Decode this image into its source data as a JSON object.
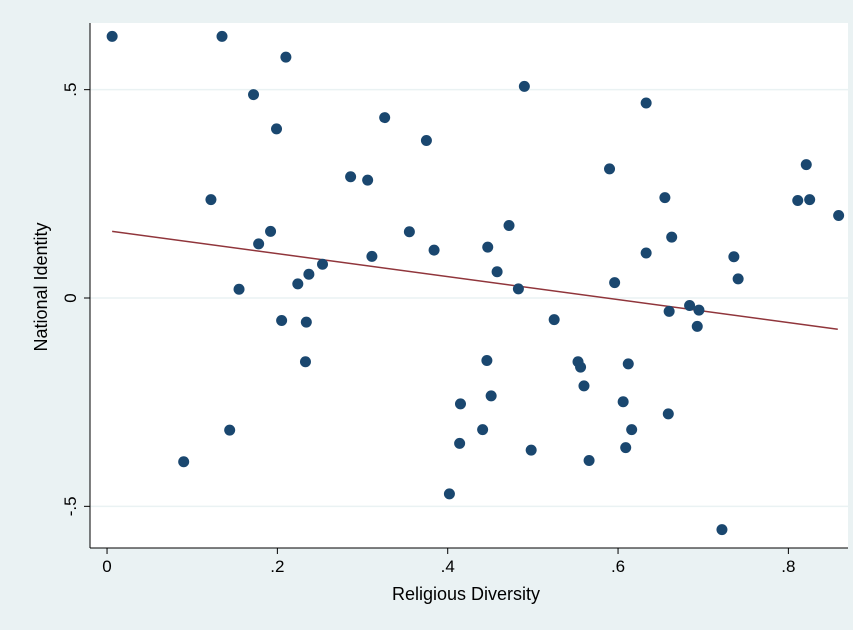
{
  "chart_data": {
    "type": "scatter",
    "xlabel": "Religious Diversity",
    "ylabel": "National Identity",
    "xlim": [
      -0.02,
      0.87
    ],
    "ylim": [
      -0.6,
      0.66
    ],
    "x_ticks": [
      {
        "value": 0,
        "label": "0"
      },
      {
        "value": 0.2,
        "label": ".2"
      },
      {
        "value": 0.4,
        "label": ".4"
      },
      {
        "value": 0.6,
        "label": ".6"
      },
      {
        "value": 0.8,
        "label": ".8"
      }
    ],
    "y_ticks": [
      {
        "value": -0.5,
        "label": "-.5"
      },
      {
        "value": 0,
        "label": "0"
      },
      {
        "value": 0.5,
        "label": ".5"
      }
    ],
    "grid": "horizontal",
    "colors": {
      "points": "#1a476f",
      "fit_line": "#90353b",
      "background": "#eaf2f3",
      "plot_background": "#ffffff",
      "grid": "#eaf2f3"
    },
    "fit_line": {
      "x": [
        0.006,
        0.858
      ],
      "y": [
        0.16,
        -0.075
      ]
    },
    "points": [
      {
        "x": 0.006,
        "y": 0.628
      },
      {
        "x": 0.135,
        "y": 0.628
      },
      {
        "x": 0.21,
        "y": 0.578
      },
      {
        "x": 0.172,
        "y": 0.488
      },
      {
        "x": 0.49,
        "y": 0.508
      },
      {
        "x": 0.633,
        "y": 0.468
      },
      {
        "x": 0.199,
        "y": 0.406
      },
      {
        "x": 0.326,
        "y": 0.433
      },
      {
        "x": 0.375,
        "y": 0.378
      },
      {
        "x": 0.286,
        "y": 0.291
      },
      {
        "x": 0.306,
        "y": 0.283
      },
      {
        "x": 0.59,
        "y": 0.31
      },
      {
        "x": 0.821,
        "y": 0.32
      },
      {
        "x": 0.122,
        "y": 0.236
      },
      {
        "x": 0.655,
        "y": 0.241
      },
      {
        "x": 0.811,
        "y": 0.234
      },
      {
        "x": 0.825,
        "y": 0.236
      },
      {
        "x": 0.859,
        "y": 0.198
      },
      {
        "x": 0.192,
        "y": 0.16
      },
      {
        "x": 0.178,
        "y": 0.13
      },
      {
        "x": 0.355,
        "y": 0.159
      },
      {
        "x": 0.472,
        "y": 0.174
      },
      {
        "x": 0.663,
        "y": 0.146
      },
      {
        "x": 0.447,
        "y": 0.122
      },
      {
        "x": 0.384,
        "y": 0.115
      },
      {
        "x": 0.311,
        "y": 0.1
      },
      {
        "x": 0.633,
        "y": 0.108
      },
      {
        "x": 0.736,
        "y": 0.099
      },
      {
        "x": 0.253,
        "y": 0.081
      },
      {
        "x": 0.458,
        "y": 0.063
      },
      {
        "x": 0.237,
        "y": 0.057
      },
      {
        "x": 0.741,
        "y": 0.046
      },
      {
        "x": 0.224,
        "y": 0.034
      },
      {
        "x": 0.596,
        "y": 0.037
      },
      {
        "x": 0.155,
        "y": 0.021
      },
      {
        "x": 0.483,
        "y": 0.022
      },
      {
        "x": 0.684,
        "y": -0.018
      },
      {
        "x": 0.66,
        "y": -0.032
      },
      {
        "x": 0.695,
        "y": -0.029
      },
      {
        "x": 0.205,
        "y": -0.054
      },
      {
        "x": 0.234,
        "y": -0.058
      },
      {
        "x": 0.525,
        "y": -0.052
      },
      {
        "x": 0.693,
        "y": -0.068
      },
      {
        "x": 0.233,
        "y": -0.153
      },
      {
        "x": 0.446,
        "y": -0.15
      },
      {
        "x": 0.553,
        "y": -0.153
      },
      {
        "x": 0.556,
        "y": -0.166
      },
      {
        "x": 0.612,
        "y": -0.158
      },
      {
        "x": 0.56,
        "y": -0.211
      },
      {
        "x": 0.451,
        "y": -0.235
      },
      {
        "x": 0.415,
        "y": -0.254
      },
      {
        "x": 0.606,
        "y": -0.249
      },
      {
        "x": 0.659,
        "y": -0.278
      },
      {
        "x": 0.144,
        "y": -0.317
      },
      {
        "x": 0.441,
        "y": -0.316
      },
      {
        "x": 0.616,
        "y": -0.316
      },
      {
        "x": 0.414,
        "y": -0.349
      },
      {
        "x": 0.609,
        "y": -0.359
      },
      {
        "x": 0.498,
        "y": -0.365
      },
      {
        "x": 0.09,
        "y": -0.393
      },
      {
        "x": 0.566,
        "y": -0.39
      },
      {
        "x": 0.402,
        "y": -0.47
      },
      {
        "x": 0.722,
        "y": -0.556
      }
    ]
  }
}
